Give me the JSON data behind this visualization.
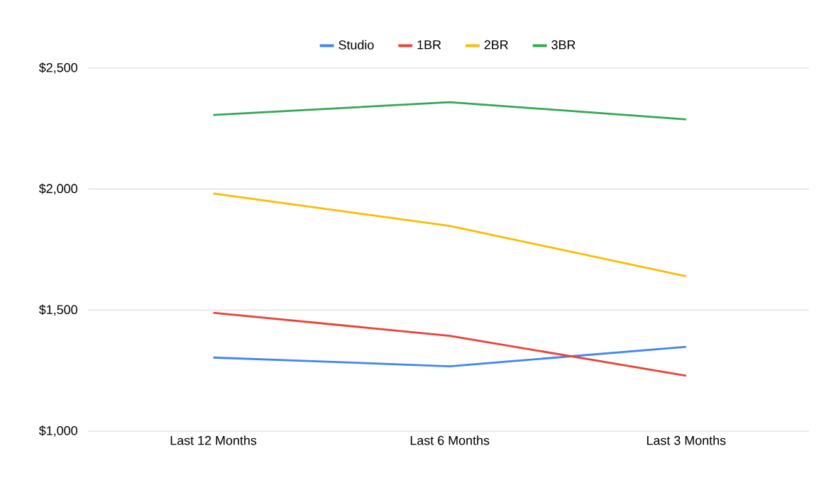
{
  "chart_data": {
    "type": "line",
    "categories": [
      "Last 12 Months",
      "Last 6 Months",
      "Last 3 Months"
    ],
    "series": [
      {
        "name": "Studio",
        "color": "#4285f4",
        "values": [
          1304,
          1268,
          1348
        ]
      },
      {
        "name": "1BR",
        "color": "#ea4335",
        "values": [
          1489,
          1394,
          1229
        ]
      },
      {
        "name": "2BR",
        "color": "#fbbc04",
        "values": [
          1982,
          1848,
          1640
        ]
      },
      {
        "name": "3BR",
        "color": "#34a853",
        "values": [
          2306,
          2359,
          2288
        ]
      }
    ],
    "ylim": [
      1000,
      2500
    ],
    "yticks": [
      {
        "value": 1000,
        "label": "$1,000"
      },
      {
        "value": 1500,
        "label": "$1,500"
      },
      {
        "value": 2000,
        "label": "$2,000"
      },
      {
        "value": 2500,
        "label": "$2,500"
      }
    ],
    "grid": "y",
    "legend": "top",
    "marker": "none",
    "line_style": "solid"
  }
}
